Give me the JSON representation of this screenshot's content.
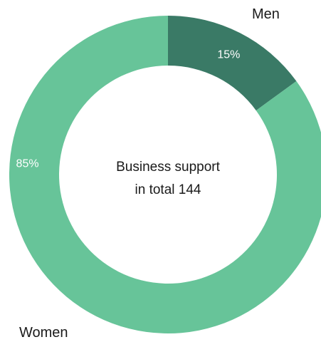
{
  "chart_data": {
    "type": "pie",
    "categories": [
      "Men",
      "Women"
    ],
    "values": [
      15,
      85
    ],
    "value_labels": [
      "15%",
      "85%"
    ],
    "colors": [
      "#3a7a66",
      "#67c499"
    ],
    "center_text": {
      "line1": "Business support",
      "line2": "in total 144"
    }
  }
}
